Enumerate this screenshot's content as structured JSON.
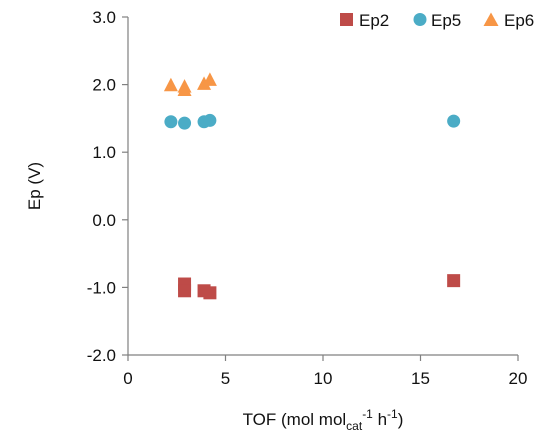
{
  "chart_data": {
    "type": "scatter",
    "xlabel": {
      "main": "TOF (mol mol",
      "sub": "cat",
      "sup1": "-1",
      "mid": " h",
      "sup2": "-1",
      "end": ")"
    },
    "ylabel": "Ep (V)",
    "xlim": [
      0,
      20
    ],
    "ylim": [
      -2.0,
      3.0
    ],
    "xticks": [
      0,
      5,
      10,
      15,
      20
    ],
    "xtick_labels": [
      "0",
      "5",
      "10",
      "15",
      "20"
    ],
    "yticks": [
      -2.0,
      -1.0,
      0.0,
      1.0,
      2.0,
      3.0
    ],
    "ytick_labels": [
      "-2.0",
      "-1.0",
      "0.0",
      "1.0",
      "2.0",
      "3.0"
    ],
    "grid": false,
    "legend_position": "top-right",
    "series": [
      {
        "name": "Ep2",
        "marker": "square",
        "color": "#be4b48",
        "points": [
          {
            "x": 2.9,
            "y": -0.95
          },
          {
            "x": 2.9,
            "y": -1.05
          },
          {
            "x": 3.9,
            "y": -1.05
          },
          {
            "x": 4.2,
            "y": -1.08
          },
          {
            "x": 16.7,
            "y": -0.9
          }
        ]
      },
      {
        "name": "Ep5",
        "marker": "circle",
        "color": "#4bacc6",
        "points": [
          {
            "x": 2.2,
            "y": 1.45
          },
          {
            "x": 2.9,
            "y": 1.43
          },
          {
            "x": 3.9,
            "y": 1.45
          },
          {
            "x": 4.2,
            "y": 1.47
          },
          {
            "x": 16.7,
            "y": 1.46
          }
        ]
      },
      {
        "name": "Ep6",
        "marker": "triangle",
        "color": "#f79646",
        "points": [
          {
            "x": 2.2,
            "y": 1.99
          },
          {
            "x": 2.9,
            "y": 1.97
          },
          {
            "x": 2.9,
            "y": 1.92
          },
          {
            "x": 3.9,
            "y": 2.01
          },
          {
            "x": 4.2,
            "y": 2.07
          }
        ]
      }
    ]
  }
}
